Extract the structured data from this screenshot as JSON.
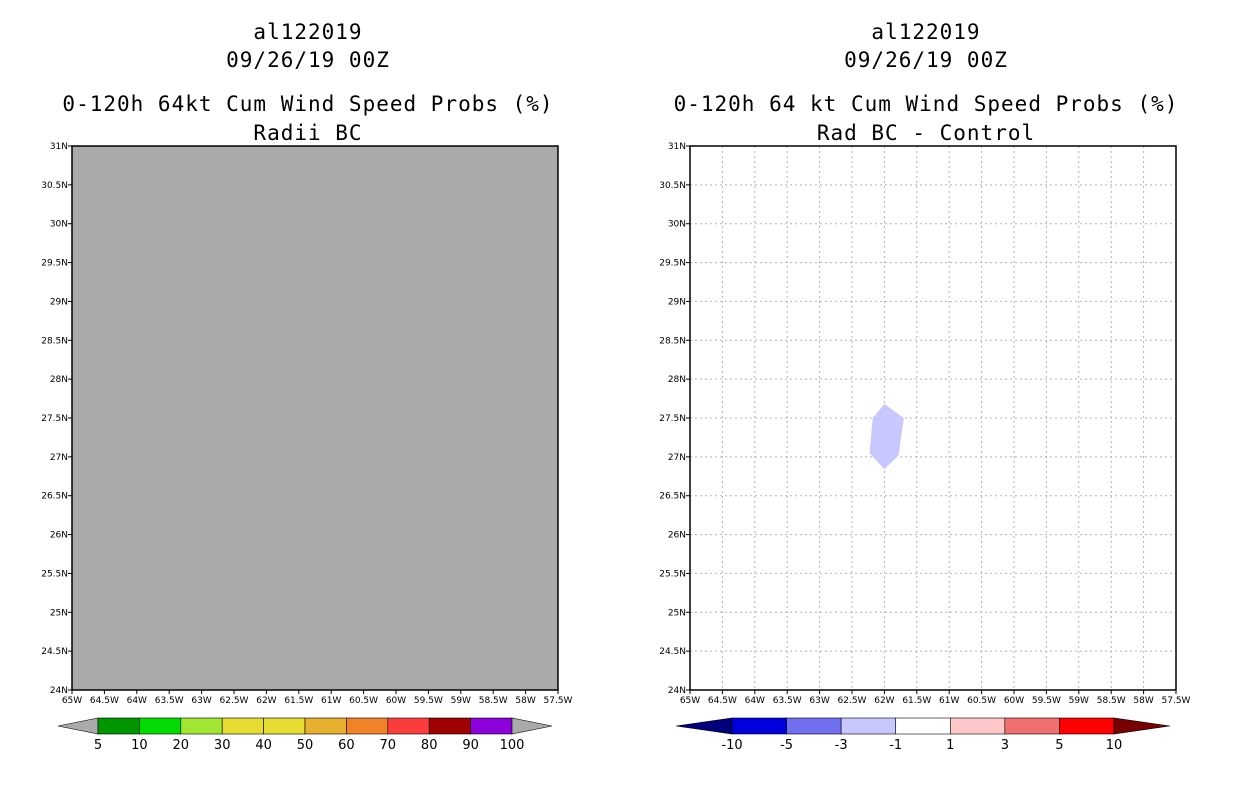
{
  "chart_data": [
    {
      "type": "heatmap",
      "storm_id": "al122019",
      "valid_time": "09/26/19 00Z",
      "title": "0-120h 64kt Cum Wind Speed Probs (%)",
      "subtitle": "Radii BC",
      "xlabel": "",
      "ylabel": "",
      "x_ticks": [
        "65W",
        "64.5W",
        "64W",
        "63.5W",
        "63W",
        "62.5W",
        "62W",
        "61.5W",
        "61W",
        "60.5W",
        "60W",
        "59.5W",
        "59W",
        "58.5W",
        "58W",
        "57.5W"
      ],
      "y_ticks": [
        "31N",
        "30.5N",
        "30N",
        "29.5N",
        "29N",
        "28.5N",
        "28N",
        "27.5N",
        "27N",
        "26.5N",
        "26N",
        "25.5N",
        "25N",
        "24.5N",
        "24N"
      ],
      "xlim": [
        -65,
        -57.5
      ],
      "ylim": [
        24,
        31
      ],
      "field": "no probabilities >= 5% (undefined/gray field)",
      "background_color": "#aaaaaa",
      "grid": false,
      "colorbar": {
        "labels": [
          "5",
          "10",
          "20",
          "30",
          "40",
          "50",
          "60",
          "70",
          "80",
          "90",
          "100"
        ],
        "colors": [
          "#009600",
          "#00dc00",
          "#a0e632",
          "#e6dc32",
          "#e6dc32",
          "#e6af2d",
          "#f08228",
          "#fa3c3c",
          "#a00000",
          "#8c00dc"
        ],
        "end_color": "#aaaaaa"
      }
    },
    {
      "type": "heatmap",
      "storm_id": "al122019",
      "valid_time": "09/26/19 00Z",
      "title": "0-120h 64 kt Cum Wind Speed Probs (%)",
      "subtitle": "Rad BC - Control",
      "xlabel": "",
      "ylabel": "",
      "x_ticks": [
        "65W",
        "64.5W",
        "64W",
        "63.5W",
        "63W",
        "62.5W",
        "62W",
        "61.5W",
        "61W",
        "60.5W",
        "60W",
        "59.5W",
        "59W",
        "58.5W",
        "58W",
        "57.5W"
      ],
      "y_ticks": [
        "31N",
        "30.5N",
        "30N",
        "29.5N",
        "29N",
        "28.5N",
        "28N",
        "27.5N",
        "27N",
        "26.5N",
        "26N",
        "25.5N",
        "25N",
        "24.5N",
        "24N"
      ],
      "xlim": [
        -65,
        -57.5
      ],
      "ylim": [
        24,
        31
      ],
      "background_color": "#ffffff",
      "grid": true,
      "contour_region": {
        "value_range": "-3 to -1",
        "color": "#c8c8ff",
        "polygon": [
          [
            -62.0,
            27.68
          ],
          [
            -61.7,
            27.5
          ],
          [
            -61.78,
            27.02
          ],
          [
            -62.0,
            26.84
          ],
          [
            -62.23,
            27.05
          ],
          [
            -62.18,
            27.5
          ]
        ]
      },
      "colorbar": {
        "labels": [
          "-10",
          "-5",
          "-3",
          "-1",
          "1",
          "3",
          "5",
          "10"
        ],
        "colors": [
          "#0000dc",
          "#7070f0",
          "#c8c8ff",
          "#ffffff",
          "#ffc8c8",
          "#f07070",
          "#ff0000"
        ],
        "end_low_color": "#00007a",
        "end_high_color": "#780000"
      }
    }
  ]
}
